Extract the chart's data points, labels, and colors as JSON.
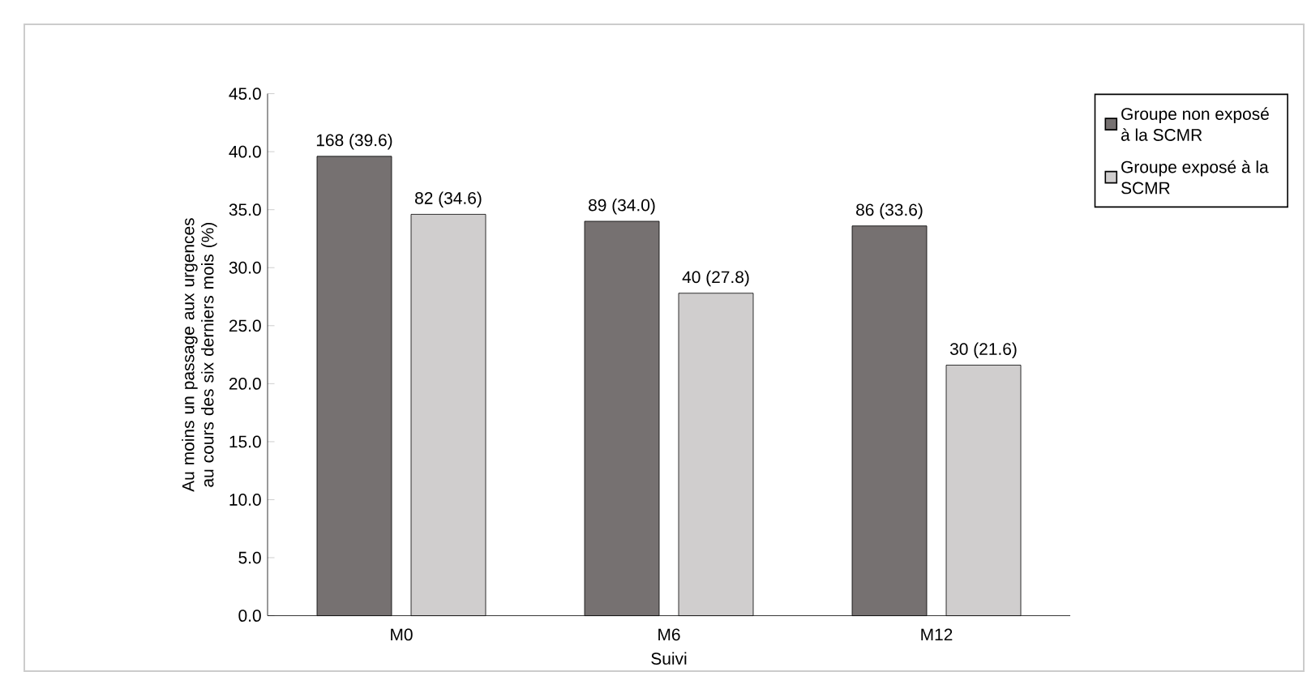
{
  "chart_data": {
    "type": "bar",
    "xlabel": "Suivi",
    "ylabel": "Au moins un passage aux urgences au cours des six derniers mois (%)",
    "categories": [
      "M0",
      "M6",
      "M12"
    ],
    "series": [
      {
        "name": "Groupe non exposé à la SCMR",
        "color": "#767171",
        "values": [
          39.6,
          34.0,
          33.6
        ],
        "value_labels": [
          "168 (39.6)",
          "89 (34.0)",
          "86 (33.6)"
        ]
      },
      {
        "name": "Groupe exposé à la SCMR",
        "color": "#d0cece",
        "values": [
          34.6,
          27.8,
          21.6
        ],
        "value_labels": [
          "82 (34.6)",
          "40 (27.8)",
          "30 (21.6)"
        ]
      }
    ],
    "ylim": [
      0,
      45
    ],
    "yticks": [
      {
        "value": 0,
        "label": "0.0"
      },
      {
        "value": 5,
        "label": "5.0"
      },
      {
        "value": 10,
        "label": "10.0"
      },
      {
        "value": 15,
        "label": "15.0"
      },
      {
        "value": 20,
        "label": "20.0"
      },
      {
        "value": 25,
        "label": "25.0"
      },
      {
        "value": 30,
        "label": "30.0"
      },
      {
        "value": 35,
        "label": "35.0"
      },
      {
        "value": 40,
        "label": "40.0"
      },
      {
        "value": 45,
        "label": "45.0"
      }
    ],
    "grid": false,
    "legend": "top right"
  }
}
